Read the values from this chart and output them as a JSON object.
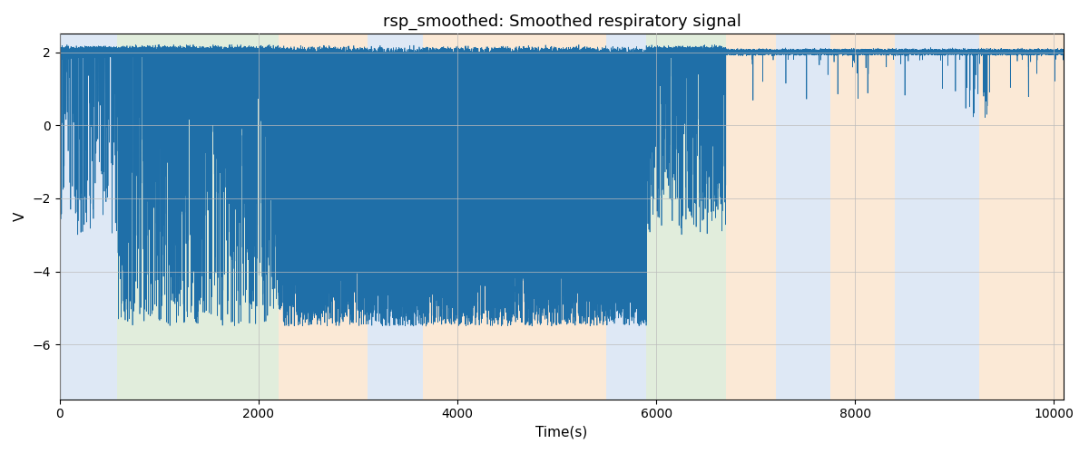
{
  "title": "rsp_smoothed: Smoothed respiratory signal",
  "xlabel": "Time(s)",
  "ylabel": "V",
  "xlim": [
    0,
    10100
  ],
  "ylim": [
    -7.5,
    2.5
  ],
  "signal_color": "#1f6fa8",
  "signal_linewidth": 0.5,
  "background_bands": [
    {
      "xmin": 0,
      "xmax": 580,
      "color": "#aec6e8",
      "alpha": 0.4
    },
    {
      "xmin": 580,
      "xmax": 2200,
      "color": "#b5d4a8",
      "alpha": 0.4
    },
    {
      "xmin": 2200,
      "xmax": 3100,
      "color": "#f5c99a",
      "alpha": 0.4
    },
    {
      "xmin": 3100,
      "xmax": 3650,
      "color": "#aec6e8",
      "alpha": 0.4
    },
    {
      "xmin": 3650,
      "xmax": 5500,
      "color": "#f5c99a",
      "alpha": 0.4
    },
    {
      "xmin": 5500,
      "xmax": 5900,
      "color": "#aec6e8",
      "alpha": 0.4
    },
    {
      "xmin": 5900,
      "xmax": 6700,
      "color": "#b5d4a8",
      "alpha": 0.4
    },
    {
      "xmin": 6700,
      "xmax": 7200,
      "color": "#f5c99a",
      "alpha": 0.4
    },
    {
      "xmin": 7200,
      "xmax": 7750,
      "color": "#aec6e8",
      "alpha": 0.4
    },
    {
      "xmin": 7750,
      "xmax": 8400,
      "color": "#f5c99a",
      "alpha": 0.4
    },
    {
      "xmin": 8400,
      "xmax": 9250,
      "color": "#aec6e8",
      "alpha": 0.4
    },
    {
      "xmin": 9250,
      "xmax": 10100,
      "color": "#f5c99a",
      "alpha": 0.4
    }
  ],
  "grid_color": "#bbbbbb",
  "yticks": [
    2,
    0,
    -2,
    -4,
    -6
  ],
  "xticks": [
    0,
    2000,
    4000,
    6000,
    8000,
    10000
  ],
  "figsize": [
    12,
    5
  ],
  "dpi": 100
}
